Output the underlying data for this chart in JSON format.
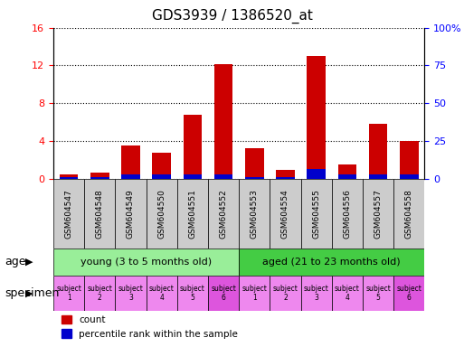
{
  "title": "GDS3939 / 1386520_at",
  "samples": [
    "GSM604547",
    "GSM604548",
    "GSM604549",
    "GSM604550",
    "GSM604551",
    "GSM604552",
    "GSM604553",
    "GSM604554",
    "GSM604555",
    "GSM604556",
    "GSM604557",
    "GSM604558"
  ],
  "count_values": [
    0.5,
    0.6,
    3.5,
    2.8,
    6.8,
    12.1,
    3.2,
    0.9,
    13.0,
    1.5,
    5.8,
    4.0
  ],
  "percentile_values": [
    0.2,
    0.2,
    0.5,
    0.5,
    0.5,
    0.5,
    0.2,
    0.2,
    1.0,
    0.5,
    0.5,
    0.5
  ],
  "left_ylim": [
    0,
    16
  ],
  "left_yticks": [
    0,
    4,
    8,
    12,
    16
  ],
  "right_ylim": [
    0,
    100
  ],
  "right_yticks": [
    0,
    25,
    50,
    75,
    100
  ],
  "right_yticklabels": [
    "0",
    "25",
    "50",
    "75",
    "100%"
  ],
  "count_color": "#CC0000",
  "percentile_color": "#0000CC",
  "age_groups": [
    {
      "label": "young (3 to 5 months old)",
      "start": 0,
      "end": 6,
      "color": "#99EE99"
    },
    {
      "label": "aged (21 to 23 months old)",
      "start": 6,
      "end": 12,
      "color": "#44CC44"
    }
  ],
  "specimen_colors": [
    "#EE88EE",
    "#EE88EE",
    "#EE88EE",
    "#EE88EE",
    "#EE88EE",
    "#DD55DD",
    "#EE88EE",
    "#EE88EE",
    "#EE88EE",
    "#EE88EE",
    "#EE88EE",
    "#DD55DD"
  ],
  "specimen_labels": [
    "subject\n1",
    "subject\n2",
    "subject\n3",
    "subject\n4",
    "subject\n5",
    "subject\n6",
    "subject\n1",
    "subject\n2",
    "subject\n3",
    "subject\n4",
    "subject\n5",
    "subject\n6"
  ],
  "xlabel_bg_color": "#CCCCCC",
  "age_row_label": "age",
  "specimen_row_label": "specimen",
  "legend_count_label": "count",
  "legend_pct_label": "percentile rank within the sample"
}
